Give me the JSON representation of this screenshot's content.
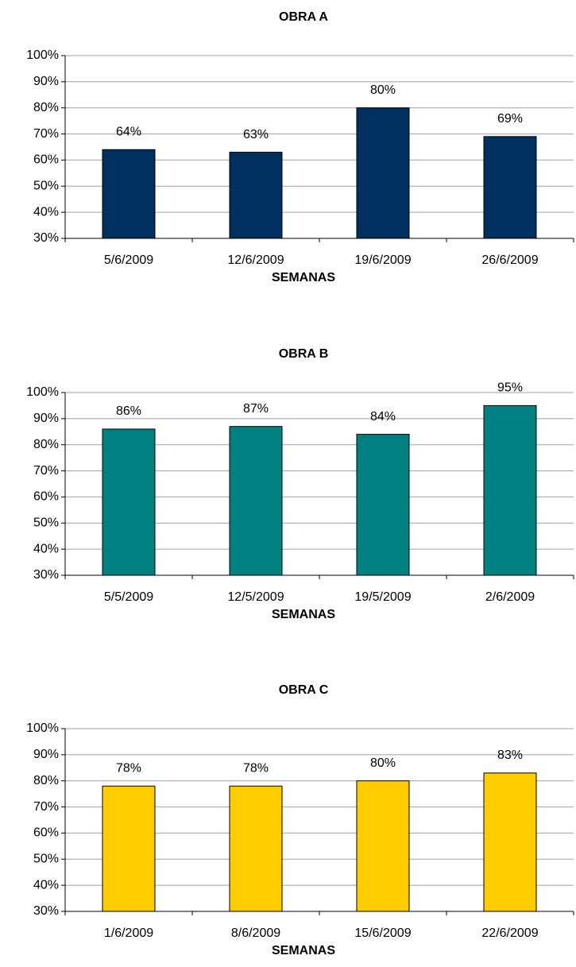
{
  "chart_data": [
    {
      "type": "bar",
      "title": "OBRA A",
      "x_label": "SEMANAS",
      "categories": [
        "5/6/2009",
        "12/6/2009",
        "19/6/2009",
        "26/6/2009"
      ],
      "values": [
        64,
        63,
        80,
        69
      ],
      "value_labels": [
        "64%",
        "63%",
        "80%",
        "69%"
      ],
      "color": "#00305e",
      "ylim": [
        30,
        100
      ],
      "yticks": [
        {
          "value": 30,
          "label": "30%"
        },
        {
          "value": 40,
          "label": "40%"
        },
        {
          "value": 50,
          "label": "50%"
        },
        {
          "value": 60,
          "label": "60%"
        },
        {
          "value": 70,
          "label": "70%"
        },
        {
          "value": 80,
          "label": "80%"
        },
        {
          "value": 90,
          "label": "90%"
        },
        {
          "value": 100,
          "label": "100%"
        }
      ],
      "grid": true
    },
    {
      "type": "bar",
      "title": "OBRA B",
      "x_label": "SEMANAS",
      "categories": [
        "5/5/2009",
        "12/5/2009",
        "19/5/2009",
        "2/6/2009"
      ],
      "values": [
        86,
        87,
        84,
        95
      ],
      "value_labels": [
        "86%",
        "87%",
        "84%",
        "95%"
      ],
      "color": "#008080",
      "ylim": [
        30,
        100
      ],
      "yticks": [
        {
          "value": 30,
          "label": "30%"
        },
        {
          "value": 40,
          "label": "40%"
        },
        {
          "value": 50,
          "label": "50%"
        },
        {
          "value": 60,
          "label": "60%"
        },
        {
          "value": 70,
          "label": "70%"
        },
        {
          "value": 80,
          "label": "80%"
        },
        {
          "value": 90,
          "label": "90%"
        },
        {
          "value": 100,
          "label": "100%"
        }
      ],
      "grid": true
    },
    {
      "type": "bar",
      "title": "OBRA C",
      "x_label": "SEMANAS",
      "categories": [
        "1/6/2009",
        "8/6/2009",
        "15/6/2009",
        "22/6/2009"
      ],
      "values": [
        78,
        78,
        80,
        83
      ],
      "value_labels": [
        "78%",
        "78%",
        "80%",
        "83%"
      ],
      "color": "#ffcc00",
      "ylim": [
        30,
        100
      ],
      "yticks": [
        {
          "value": 30,
          "label": "30%"
        },
        {
          "value": 40,
          "label": "40%"
        },
        {
          "value": 50,
          "label": "50%"
        },
        {
          "value": 60,
          "label": "60%"
        },
        {
          "value": 70,
          "label": "70%"
        },
        {
          "value": 80,
          "label": "80%"
        },
        {
          "value": 90,
          "label": "90%"
        },
        {
          "value": 100,
          "label": "100%"
        }
      ],
      "grid": true
    }
  ]
}
